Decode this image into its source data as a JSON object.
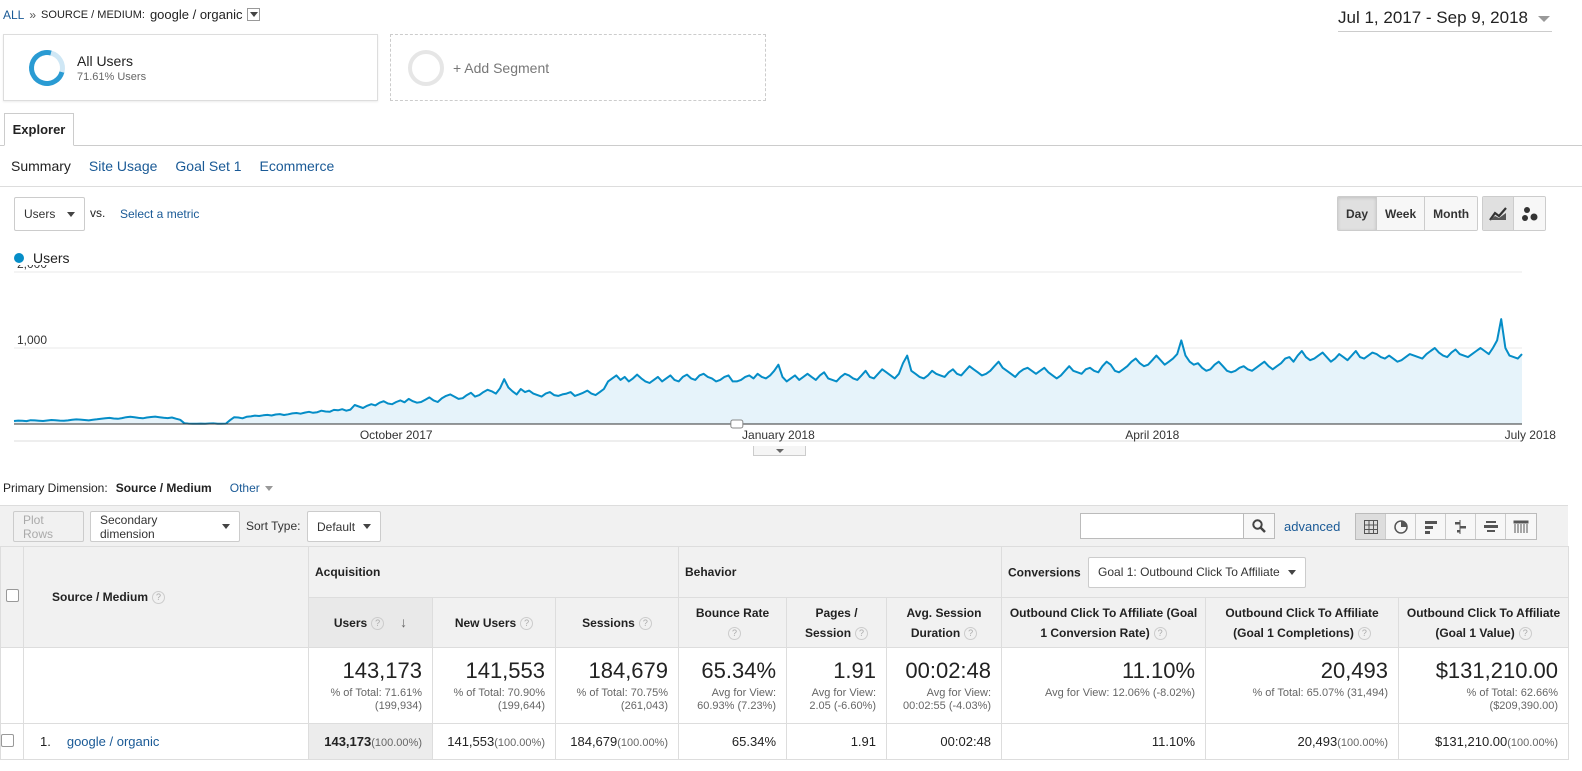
{
  "breadcrumb": {
    "all": "ALL",
    "separator": "»",
    "dimension": "SOURCE / MEDIUM:",
    "value": "google / organic"
  },
  "date_range": "Jul 1, 2017 - Sep 9, 2018",
  "segments": {
    "all_users": {
      "name": "All Users",
      "sub": "71.61% Users"
    },
    "add": "+ Add Segment"
  },
  "tabs": {
    "explorer": "Explorer"
  },
  "subtabs": [
    "Summary",
    "Site Usage",
    "Goal Set 1",
    "Ecommerce"
  ],
  "metric": {
    "selected": "Users",
    "vs": "vs.",
    "select": "Select a metric"
  },
  "period_buttons": [
    "Day",
    "Week",
    "Month"
  ],
  "chart_data": {
    "type": "area",
    "series": [
      {
        "name": "Users",
        "color": "#058dc7",
        "values": [
          40,
          45,
          42,
          38,
          50,
          48,
          44,
          40,
          46,
          52,
          50,
          45,
          42,
          48,
          55,
          60,
          58,
          52,
          48,
          55,
          62,
          70,
          75,
          80,
          72,
          68,
          78,
          90,
          95,
          88,
          80,
          75,
          85,
          92,
          98,
          90,
          82,
          78,
          85,
          70,
          55,
          10,
          5,
          2,
          3,
          5,
          4,
          6,
          8,
          4,
          3,
          5,
          50,
          90,
          85,
          75,
          95,
          100,
          110,
          105,
          115,
          120,
          112,
          125,
          130,
          118,
          128,
          140,
          145,
          135,
          150,
          160,
          148,
          155,
          175,
          165,
          160,
          185,
          180,
          195,
          175,
          190,
          250,
          230,
          210,
          240,
          260,
          245,
          280,
          300,
          270,
          260,
          290,
          310,
          285,
          330,
          300,
          280,
          290,
          320,
          350,
          310,
          290,
          340,
          370,
          390,
          360,
          330,
          340,
          380,
          410,
          360,
          380,
          420,
          450,
          430,
          400,
          470,
          590,
          480,
          430,
          390,
          460,
          420,
          440,
          400,
          380,
          360,
          400,
          420,
          380,
          370,
          390,
          400,
          420,
          370,
          390,
          410,
          440,
          400,
          380,
          420,
          460,
          560,
          600,
          640,
          580,
          620,
          560,
          600,
          650,
          600,
          560,
          540,
          580,
          620,
          560,
          600,
          640,
          580,
          560,
          620,
          650,
          600,
          580,
          640,
          660,
          620,
          600,
          560,
          580,
          620,
          640,
          560,
          560,
          580,
          620,
          640,
          600,
          660,
          620,
          600,
          640,
          700,
          780,
          620,
          560,
          600,
          640,
          580,
          620,
          660,
          620,
          580,
          640,
          680,
          600,
          580,
          560,
          620,
          660,
          640,
          600,
          580,
          640,
          700,
          620,
          600,
          660,
          720,
          680,
          640,
          600,
          660,
          800,
          900,
          700,
          660,
          620,
          600,
          640,
          700,
          660,
          640,
          620,
          680,
          720,
          660,
          640,
          700,
          760,
          720,
          680,
          640,
          660,
          700,
          760,
          820,
          740,
          700,
          660,
          620,
          680,
          720,
          740,
          700,
          660,
          700,
          740,
          680,
          640,
          600,
          640,
          700,
          760,
          700,
          680,
          660,
          720,
          740,
          700,
          680,
          760,
          820,
          780,
          700,
          680,
          720,
          760,
          820,
          860,
          800,
          760,
          780,
          840,
          900,
          840,
          780,
          820,
          860,
          920,
          1100,
          900,
          820,
          780,
          800,
          740,
          700,
          720,
          780,
          820,
          760,
          700,
          680,
          700,
          740,
          760,
          720,
          700,
          740,
          780,
          820,
          760,
          720,
          760,
          800,
          860,
          880,
          820,
          900,
          960,
          880,
          840,
          860,
          900,
          940,
          880,
          820,
          860,
          920,
          880,
          840,
          900,
          960,
          880,
          860,
          900,
          940,
          920,
          880,
          860,
          900,
          860,
          820,
          840,
          880,
          920,
          900,
          880,
          860,
          920,
          960,
          1000,
          940,
          900,
          880,
          940,
          980,
          920,
          900,
          880,
          920,
          960,
          1000,
          960,
          920,
          1000,
          1100,
          1380,
          1000,
          900,
          880,
          860,
          920
        ]
      }
    ],
    "x_tick_labels": [
      "October 2017",
      "January 2018",
      "April 2018",
      "July 2018"
    ],
    "y_tick_labels": [
      "2,000",
      "1,000"
    ],
    "ylim": [
      0,
      2000
    ],
    "grid": true
  },
  "primary_dimension": {
    "label": "Primary Dimension:",
    "current": "Source / Medium",
    "other": "Other"
  },
  "toolbar": {
    "plot_rows": "Plot Rows",
    "secondary_dimension": "Secondary dimension",
    "sort_label": "Sort Type:",
    "sort_value": "Default",
    "advanced": "advanced"
  },
  "table": {
    "dimension_header": "Source / Medium",
    "groups": {
      "acquisition": "Acquisition",
      "behavior": "Behavior",
      "conversions": "Conversions",
      "goal_select": "Goal 1: Outbound Click To Affiliate"
    },
    "columns": [
      "Users",
      "New Users",
      "Sessions",
      "Bounce Rate",
      "Pages / Session",
      "Avg. Session Duration",
      "Outbound Click To Affiliate (Goal 1 Conversion Rate)",
      "Outbound Click To Affiliate (Goal 1 Completions)",
      "Outbound Click To Affiliate (Goal 1 Value)"
    ],
    "totals": [
      {
        "value": "143,173",
        "sub1": "% of Total: 71.61%",
        "sub2": "(199,934)"
      },
      {
        "value": "141,553",
        "sub1": "% of Total: 70.90%",
        "sub2": "(199,644)"
      },
      {
        "value": "184,679",
        "sub1": "% of Total: 70.75%",
        "sub2": "(261,043)"
      },
      {
        "value": "65.34%",
        "sub1": "Avg for View:",
        "sub2": "60.93% (7.23%)"
      },
      {
        "value": "1.91",
        "sub1": "Avg for View:",
        "sub2": "2.05 (-6.60%)"
      },
      {
        "value": "00:02:48",
        "sub1": "Avg for View:",
        "sub2": "00:02:55 (-4.03%)"
      },
      {
        "value": "11.10%",
        "sub1": "Avg for View: 12.06% (-8.02%)",
        "sub2": ""
      },
      {
        "value": "20,493",
        "sub1": "% of Total: 65.07% (31,494)",
        "sub2": ""
      },
      {
        "value": "$131,210.00",
        "sub1": "% of Total: 62.66%",
        "sub2": "($209,390.00)"
      }
    ],
    "rows": [
      {
        "index": "1.",
        "name": "google / organic",
        "cells": [
          {
            "value": "143,173",
            "pct": "(100.00%)"
          },
          {
            "value": "141,553",
            "pct": "(100.00%)"
          },
          {
            "value": "184,679",
            "pct": "(100.00%)"
          },
          {
            "value": "65.34%",
            "pct": ""
          },
          {
            "value": "1.91",
            "pct": ""
          },
          {
            "value": "00:02:48",
            "pct": ""
          },
          {
            "value": "11.10%",
            "pct": ""
          },
          {
            "value": "20,493",
            "pct": "(100.00%)"
          },
          {
            "value": "$131,210.00",
            "pct": "(100.00%)"
          }
        ]
      }
    ]
  }
}
